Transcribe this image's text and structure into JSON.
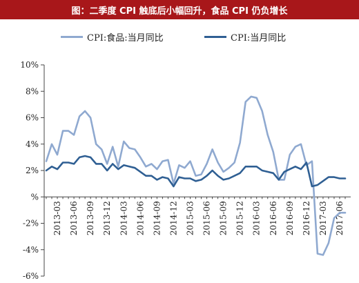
{
  "title": "图：二季度 CPI 触底后小幅回升，食品 CPI 仍负增长",
  "colors": {
    "title_bg": "#a8171a",
    "food": "#8fa9d0",
    "cpi": "#2f5f93"
  },
  "chart_data": {
    "type": "line",
    "title": "图：二季度 CPI 触底后小幅回升，食品 CPI 仍负增长",
    "xlabel": "",
    "ylabel": "",
    "ylim": [
      -6,
      10
    ],
    "yticks": [
      -6,
      -4,
      -2,
      0,
      2,
      4,
      6,
      8,
      10
    ],
    "ytick_labels": [
      "-6%",
      "-4%",
      "-2%",
      "%",
      "2%",
      "4%",
      "6%",
      "8%",
      "10%"
    ],
    "xtick_labels": [
      "2013-03",
      "2013-06",
      "2013-09",
      "2013-12",
      "2014-03",
      "2014-06",
      "2014-09",
      "2014-12",
      "2015-03",
      "2015-06",
      "2015-09",
      "2015-12",
      "2016-03",
      "2016-06",
      "2016-09",
      "2016-12",
      "2017-03",
      "2017-06"
    ],
    "legend_position": "top",
    "grid": false,
    "x": [
      "2013-01",
      "2013-02",
      "2013-03",
      "2013-04",
      "2013-05",
      "2013-06",
      "2013-07",
      "2013-08",
      "2013-09",
      "2013-10",
      "2013-11",
      "2013-12",
      "2014-01",
      "2014-02",
      "2014-03",
      "2014-04",
      "2014-05",
      "2014-06",
      "2014-07",
      "2014-08",
      "2014-09",
      "2014-10",
      "2014-11",
      "2014-12",
      "2015-01",
      "2015-02",
      "2015-03",
      "2015-04",
      "2015-05",
      "2015-06",
      "2015-07",
      "2015-08",
      "2015-09",
      "2015-10",
      "2015-11",
      "2015-12",
      "2016-01",
      "2016-02",
      "2016-03",
      "2016-04",
      "2016-05",
      "2016-06",
      "2016-07",
      "2016-08",
      "2016-09",
      "2016-10",
      "2016-11",
      "2016-12",
      "2017-01",
      "2017-02",
      "2017-03",
      "2017-04",
      "2017-05",
      "2017-06",
      "2017-07"
    ],
    "series": [
      {
        "name": "CPI:食品:当月同比",
        "color": "#8fa9d0",
        "values": [
          2.7,
          4.0,
          3.2,
          5.0,
          5.0,
          4.7,
          6.1,
          6.5,
          6.0,
          4.0,
          3.6,
          2.5,
          3.8,
          2.3,
          4.2,
          3.7,
          3.6,
          3.0,
          2.3,
          2.5,
          2.1,
          2.7,
          2.8,
          1.0,
          2.4,
          2.2,
          2.7,
          1.6,
          1.7,
          2.5,
          3.6,
          2.6,
          1.9,
          2.2,
          2.6,
          4.1,
          7.2,
          7.6,
          7.5,
          6.5,
          4.7,
          3.4,
          1.3,
          1.3,
          3.2,
          3.8,
          4.0,
          2.4,
          2.7,
          -4.3,
          -4.4,
          -3.5,
          -1.6,
          -1.2,
          -1.2
        ]
      },
      {
        "name": "CPI:当月同比",
        "color": "#2f5f93",
        "values": [
          2.0,
          2.3,
          2.1,
          2.6,
          2.6,
          2.5,
          3.0,
          3.1,
          3.0,
          2.5,
          2.5,
          2.0,
          2.5,
          2.1,
          2.4,
          2.3,
          2.2,
          1.9,
          1.6,
          1.6,
          1.3,
          1.5,
          1.4,
          0.8,
          1.5,
          1.4,
          1.4,
          1.2,
          1.3,
          1.6,
          2.0,
          1.6,
          1.3,
          1.4,
          1.6,
          1.8,
          2.3,
          2.3,
          2.3,
          2.0,
          1.9,
          1.8,
          1.3,
          1.9,
          2.1,
          2.3,
          2.1,
          2.6,
          0.8,
          0.9,
          1.2,
          1.5,
          1.5,
          1.4,
          1.4
        ]
      }
    ]
  }
}
